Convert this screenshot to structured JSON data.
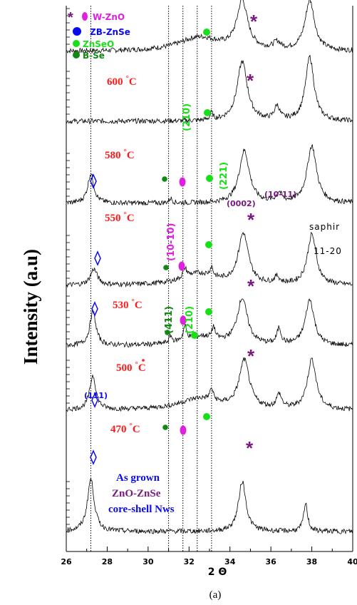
{
  "chart_data": {
    "type": "line",
    "title": "",
    "xlabel": "2 Θ",
    "ylabel": "Intensity (a.u)",
    "xlim": [
      26,
      40
    ],
    "x_ticks": [
      "26",
      "28",
      "30",
      "32",
      "34",
      "36",
      "38",
      "40"
    ],
    "caption": "(a)",
    "reference_lines_x": [
      27.2,
      31.0,
      31.7,
      32.4,
      33.1
    ],
    "legend": [
      {
        "label": "W-ZnO",
        "marker": "star+dot",
        "color": "#e020e0"
      },
      {
        "label": "ZB-ZnSe",
        "marker": "dot",
        "color": "#0a0aee"
      },
      {
        "label": "ZnSeO",
        "marker": "dot",
        "color": "#18e018"
      },
      {
        "label": "B-Se",
        "marker": "dot",
        "color": "#118811"
      }
    ],
    "series": [
      {
        "name": "600 °C",
        "label_text": "600",
        "label_unit": "°C",
        "label_color": "#ff1a1a",
        "peaks": [
          [
            34.6,
            2.1,
            0.32
          ],
          [
            37.9,
            2.2,
            0.28
          ],
          [
            32.5,
            0.6,
            1.2
          ],
          [
            36.3,
            0.3,
            0.2
          ]
        ]
      },
      {
        "name": "580 °C",
        "label_text": "580",
        "label_unit": "°C",
        "label_color": "#ff1a1a",
        "peaks": [
          [
            34.6,
            2.6,
            0.3
          ],
          [
            37.9,
            2.8,
            0.25
          ],
          [
            33.1,
            0.3,
            0.08
          ],
          [
            36.3,
            0.6,
            0.15
          ]
        ]
      },
      {
        "name": "550 °C",
        "label_text": "550",
        "label_unit": "°C",
        "label_color": "#ff1a1a",
        "peaks": [
          [
            27.2,
            1.3,
            0.18
          ],
          [
            34.7,
            2.3,
            0.3
          ],
          [
            38.0,
            2.5,
            0.28
          ],
          [
            36.4,
            0.4,
            0.15
          ],
          [
            31.1,
            0.2,
            0.1
          ]
        ]
      },
      {
        "name": "530 °C",
        "label_text": "530",
        "label_unit": "°C",
        "label_color": "#ff1a1a",
        "peaks": [
          [
            27.35,
            0.7,
            0.2
          ],
          [
            34.65,
            2.2,
            0.3
          ],
          [
            38.0,
            2.2,
            0.26
          ],
          [
            31.8,
            0.4,
            0.12
          ],
          [
            33.1,
            0.4,
            0.08
          ],
          [
            32.5,
            0.5,
            1.0
          ],
          [
            36.3,
            0.3,
            0.15
          ]
        ]
      },
      {
        "name": "500 °C",
        "label_text": "500",
        "label_unit": "°C",
        "label_color": "#ff1a1a",
        "peaks": [
          [
            27.3,
            1.5,
            0.18
          ],
          [
            34.6,
            2.0,
            0.3
          ],
          [
            37.9,
            2.0,
            0.26
          ],
          [
            31.8,
            0.6,
            0.1
          ],
          [
            33.2,
            0.5,
            0.08
          ],
          [
            36.4,
            0.7,
            0.12
          ],
          [
            31.1,
            0.3,
            0.08
          ],
          [
            32.6,
            0.4,
            1.1
          ]
        ]
      },
      {
        "name": "470 °C",
        "label_text": "470",
        "label_unit": "°C",
        "label_color": "#ff1a1a",
        "peaks": [
          [
            27.3,
            1.5,
            0.18
          ],
          [
            34.7,
            2.1,
            0.3
          ],
          [
            38.0,
            2.2,
            0.26
          ],
          [
            33.1,
            0.5,
            0.1
          ],
          [
            36.4,
            0.6,
            0.15
          ],
          [
            32.5,
            0.5,
            1.2
          ]
        ]
      },
      {
        "name": "As grown ZnO-ZnSe core-shell Nws",
        "peaks": [
          [
            27.2,
            2.3,
            0.2
          ],
          [
            34.6,
            2.2,
            0.22
          ],
          [
            37.7,
            1.2,
            0.12
          ]
        ]
      }
    ]
  },
  "annotations": {
    "hkl_210_top": "(210)",
    "hkl_221": "(221)",
    "hkl_10_11": "(10-11)",
    "hkl_0002": "(0002)",
    "saphir": "saphir",
    "saphir_plane": "11-20",
    "hkl_10_10": "(10-10)",
    "hkl_411": "(411)",
    "hkl_210_mid": "(210)",
    "hkl_111": "(111)",
    "as_grown_1": "As grown",
    "as_grown_2": "ZnO-ZnSe",
    "as_grown_3": "core-shell Nws"
  },
  "colors": {
    "red": "#ff1a1a",
    "magenta": "#e020e0",
    "blue": "#0a0aee",
    "green": "#18e018",
    "dark_green": "#118811",
    "purple": "#7a1a80"
  }
}
